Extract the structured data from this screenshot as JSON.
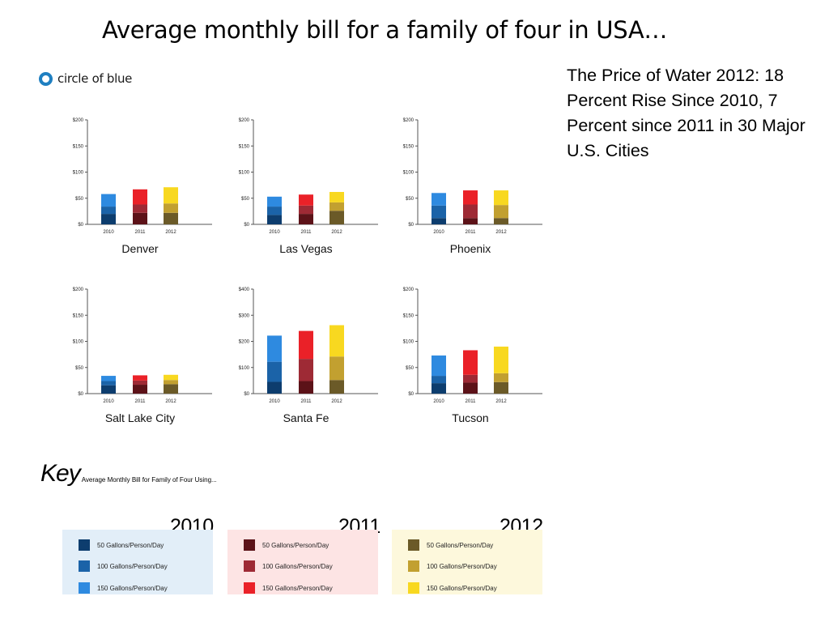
{
  "slide": {
    "title": "Average monthly bill for a family of four in USA…",
    "side_text": "The Price of Water 2012: 18 Percent Rise Since 2010, 7 Percent since 2011 in 30 Major U.S. Cities"
  },
  "logo": {
    "text": "circle of blue",
    "color": "#1f7fc1"
  },
  "colors": {
    "2010": [
      "#0d3d6e",
      "#1b63a8",
      "#2e8ae0"
    ],
    "2011": [
      "#5c1218",
      "#9e2a35",
      "#ea2128"
    ],
    "2012": [
      "#6b5a28",
      "#c2a030",
      "#f8d820"
    ]
  },
  "key": {
    "title": "Key",
    "subtitle": "Average Monthly Bill for Family of Four Using...",
    "groups": [
      {
        "year": "2010",
        "bg": "#e2eef8",
        "items": [
          "50 Gallons/Person/Day",
          "100 Gallons/Person/Day",
          "150 Gallons/Person/Day"
        ]
      },
      {
        "year": "2011",
        "bg": "#fde4e4",
        "items": [
          "50 Gallons/Person/Day",
          "100 Gallons/Person/Day",
          "150 Gallons/Person/Day"
        ]
      },
      {
        "year": "2012",
        "bg": "#fdf8dc",
        "items": [
          "50 Gallons/Person/Day",
          "100 Gallons/Person/Day",
          "150 Gallons/Person/Day"
        ]
      }
    ]
  },
  "chart_data": [
    {
      "type": "bar",
      "title": "Denver",
      "categories": [
        "2010",
        "2011",
        "2012"
      ],
      "yticks": [
        "$0",
        "$50",
        "$100",
        "$150",
        "$200"
      ],
      "ylim": [
        0,
        200
      ],
      "series": [
        {
          "name": "50 Gallons/Person/Day",
          "values": [
            20,
            22,
            22
          ]
        },
        {
          "name": "100 Gallons/Person/Day",
          "values": [
            34,
            38,
            40
          ]
        },
        {
          "name": "150 Gallons/Person/Day",
          "values": [
            58,
            67,
            71
          ]
        }
      ]
    },
    {
      "type": "bar",
      "title": "Las Vegas",
      "categories": [
        "2010",
        "2011",
        "2012"
      ],
      "yticks": [
        "$0",
        "$50",
        "$100",
        "$150",
        "$200"
      ],
      "ylim": [
        0,
        200
      ],
      "series": [
        {
          "name": "50 Gallons/Person/Day",
          "values": [
            18,
            20,
            26
          ]
        },
        {
          "name": "100 Gallons/Person/Day",
          "values": [
            34,
            36,
            42
          ]
        },
        {
          "name": "150 Gallons/Person/Day",
          "values": [
            53,
            57,
            62
          ]
        }
      ]
    },
    {
      "type": "bar",
      "title": "Phoenix",
      "categories": [
        "2010",
        "2011",
        "2012"
      ],
      "yticks": [
        "$0",
        "$50",
        "$100",
        "$150",
        "$200"
      ],
      "ylim": [
        0,
        200
      ],
      "series": [
        {
          "name": "50 Gallons/Person/Day",
          "values": [
            12,
            12,
            12
          ]
        },
        {
          "name": "100 Gallons/Person/Day",
          "values": [
            36,
            38,
            37
          ]
        },
        {
          "name": "150 Gallons/Person/Day",
          "values": [
            60,
            65,
            65
          ]
        }
      ]
    },
    {
      "type": "bar",
      "title": "Salt Lake City",
      "categories": [
        "2010",
        "2011",
        "2012"
      ],
      "yticks": [
        "$0",
        "$50",
        "$100",
        "$150",
        "$200"
      ],
      "ylim": [
        0,
        200
      ],
      "series": [
        {
          "name": "50 Gallons/Person/Day",
          "values": [
            16,
            17,
            18
          ]
        },
        {
          "name": "100 Gallons/Person/Day",
          "values": [
            24,
            25,
            26
          ]
        },
        {
          "name": "150 Gallons/Person/Day",
          "values": [
            34,
            35,
            36
          ]
        }
      ]
    },
    {
      "type": "bar",
      "title": "Santa Fe",
      "categories": [
        "2010",
        "2011",
        "2012"
      ],
      "yticks": [
        "$0",
        "$100",
        "$200",
        "$300",
        "$400"
      ],
      "ylim": [
        0,
        400
      ],
      "series": [
        {
          "name": "50 Gallons/Person/Day",
          "values": [
            45,
            48,
            52
          ]
        },
        {
          "name": "100 Gallons/Person/Day",
          "values": [
            122,
            133,
            142
          ]
        },
        {
          "name": "150 Gallons/Person/Day",
          "values": [
            222,
            240,
            262
          ]
        }
      ]
    },
    {
      "type": "bar",
      "title": "Tucson",
      "categories": [
        "2010",
        "2011",
        "2012"
      ],
      "yticks": [
        "$0",
        "$50",
        "$100",
        "$150",
        "$200"
      ],
      "ylim": [
        0,
        200
      ],
      "series": [
        {
          "name": "50 Gallons/Person/Day",
          "values": [
            20,
            21,
            22
          ]
        },
        {
          "name": "100 Gallons/Person/Day",
          "values": [
            34,
            36,
            39
          ]
        },
        {
          "name": "150 Gallons/Person/Day",
          "values": [
            73,
            83,
            90
          ]
        }
      ]
    }
  ]
}
